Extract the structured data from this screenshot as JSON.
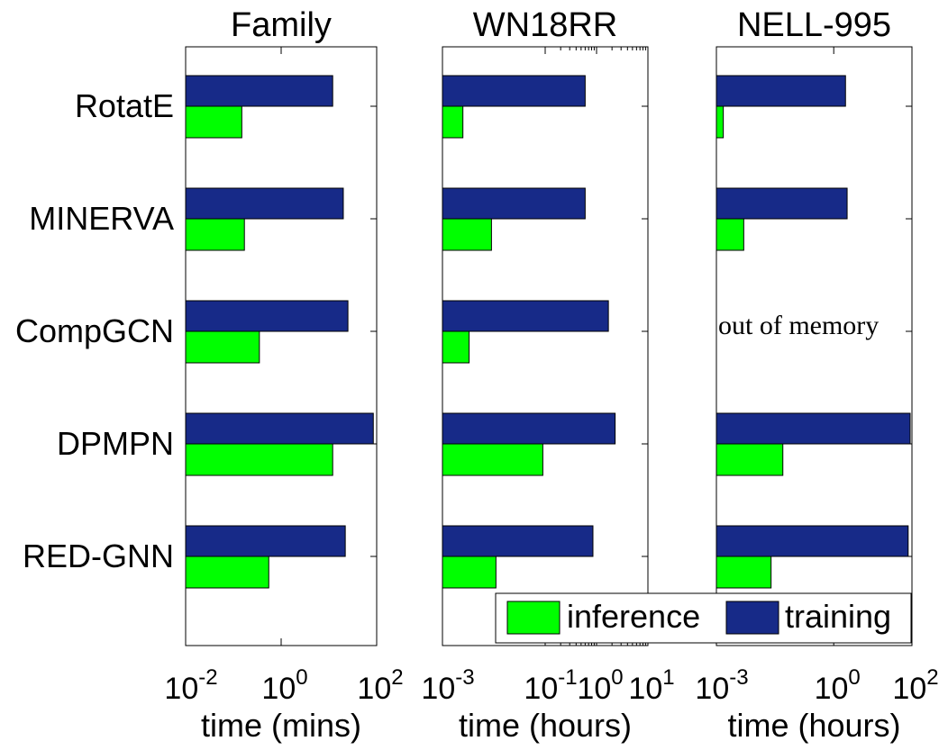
{
  "chart_data": [
    {
      "type": "bar",
      "orientation": "horizontal",
      "title": "Family",
      "xlabel": "time (mins)",
      "xscale": "log",
      "xlim": [
        0.01,
        100
      ],
      "xticks": [
        {
          "base": "10",
          "exp": "-2",
          "value": 0.01
        },
        {
          "base": "10",
          "exp": "0",
          "value": 1
        },
        {
          "base": "10",
          "exp": "2",
          "value": 100
        }
      ],
      "categories": [
        "RotatE",
        "MINERVA",
        "CompGCN",
        "DPMPN",
        "RED-GNN"
      ],
      "series": [
        {
          "name": "training",
          "values": [
            12,
            20,
            25,
            85,
            22
          ]
        },
        {
          "name": "inference",
          "values": [
            0.15,
            0.17,
            0.35,
            12,
            0.55
          ]
        }
      ],
      "annotations": []
    },
    {
      "type": "bar",
      "orientation": "horizontal",
      "title": "WN18RR",
      "xlabel": "time (hours)",
      "xscale": "log",
      "xlim": [
        0.001,
        10
      ],
      "xticks": [
        {
          "base": "10",
          "exp": "-3",
          "value": 0.001
        },
        {
          "base": "10",
          "exp": "-1",
          "value": 0.1
        },
        {
          "base": "10",
          "exp": "0",
          "value": 1
        },
        {
          "base": "10",
          "exp": "1",
          "value": 10
        }
      ],
      "categories": [
        "RotatE",
        "MINERVA",
        "CompGCN",
        "DPMPN",
        "RED-GNN"
      ],
      "series": [
        {
          "name": "training",
          "values": [
            0.6,
            0.6,
            1.7,
            2.3,
            0.85
          ]
        },
        {
          "name": "inference",
          "values": [
            0.0025,
            0.009,
            0.0033,
            0.09,
            0.011
          ]
        }
      ],
      "annotations": []
    },
    {
      "type": "bar",
      "orientation": "horizontal",
      "title": "NELL-995",
      "xlabel": "time (hours)",
      "xscale": "log",
      "xlim": [
        0.001,
        100
      ],
      "xticks": [
        {
          "base": "10",
          "exp": "-3",
          "value": 0.001
        },
        {
          "base": "10",
          "exp": "0",
          "value": 1
        },
        {
          "base": "10",
          "exp": "2",
          "value": 100
        }
      ],
      "categories": [
        "RotatE",
        "MINERVA",
        "CompGCN",
        "DPMPN",
        "RED-GNN"
      ],
      "series": [
        {
          "name": "training",
          "values": [
            2,
            2.2,
            null,
            90,
            80
          ]
        },
        {
          "name": "inference",
          "values": [
            0.0015,
            0.005,
            null,
            0.05,
            0.025
          ]
        }
      ],
      "annotations": [
        {
          "category": "CompGCN",
          "text": "out of memory"
        }
      ]
    }
  ],
  "legend": {
    "position": "bottom-right",
    "entries": [
      {
        "name": "inference",
        "color": "#00ff00"
      },
      {
        "name": "training",
        "color": "#172a88"
      }
    ]
  },
  "colors": {
    "training": "#172a88",
    "inference": "#00ff00"
  }
}
